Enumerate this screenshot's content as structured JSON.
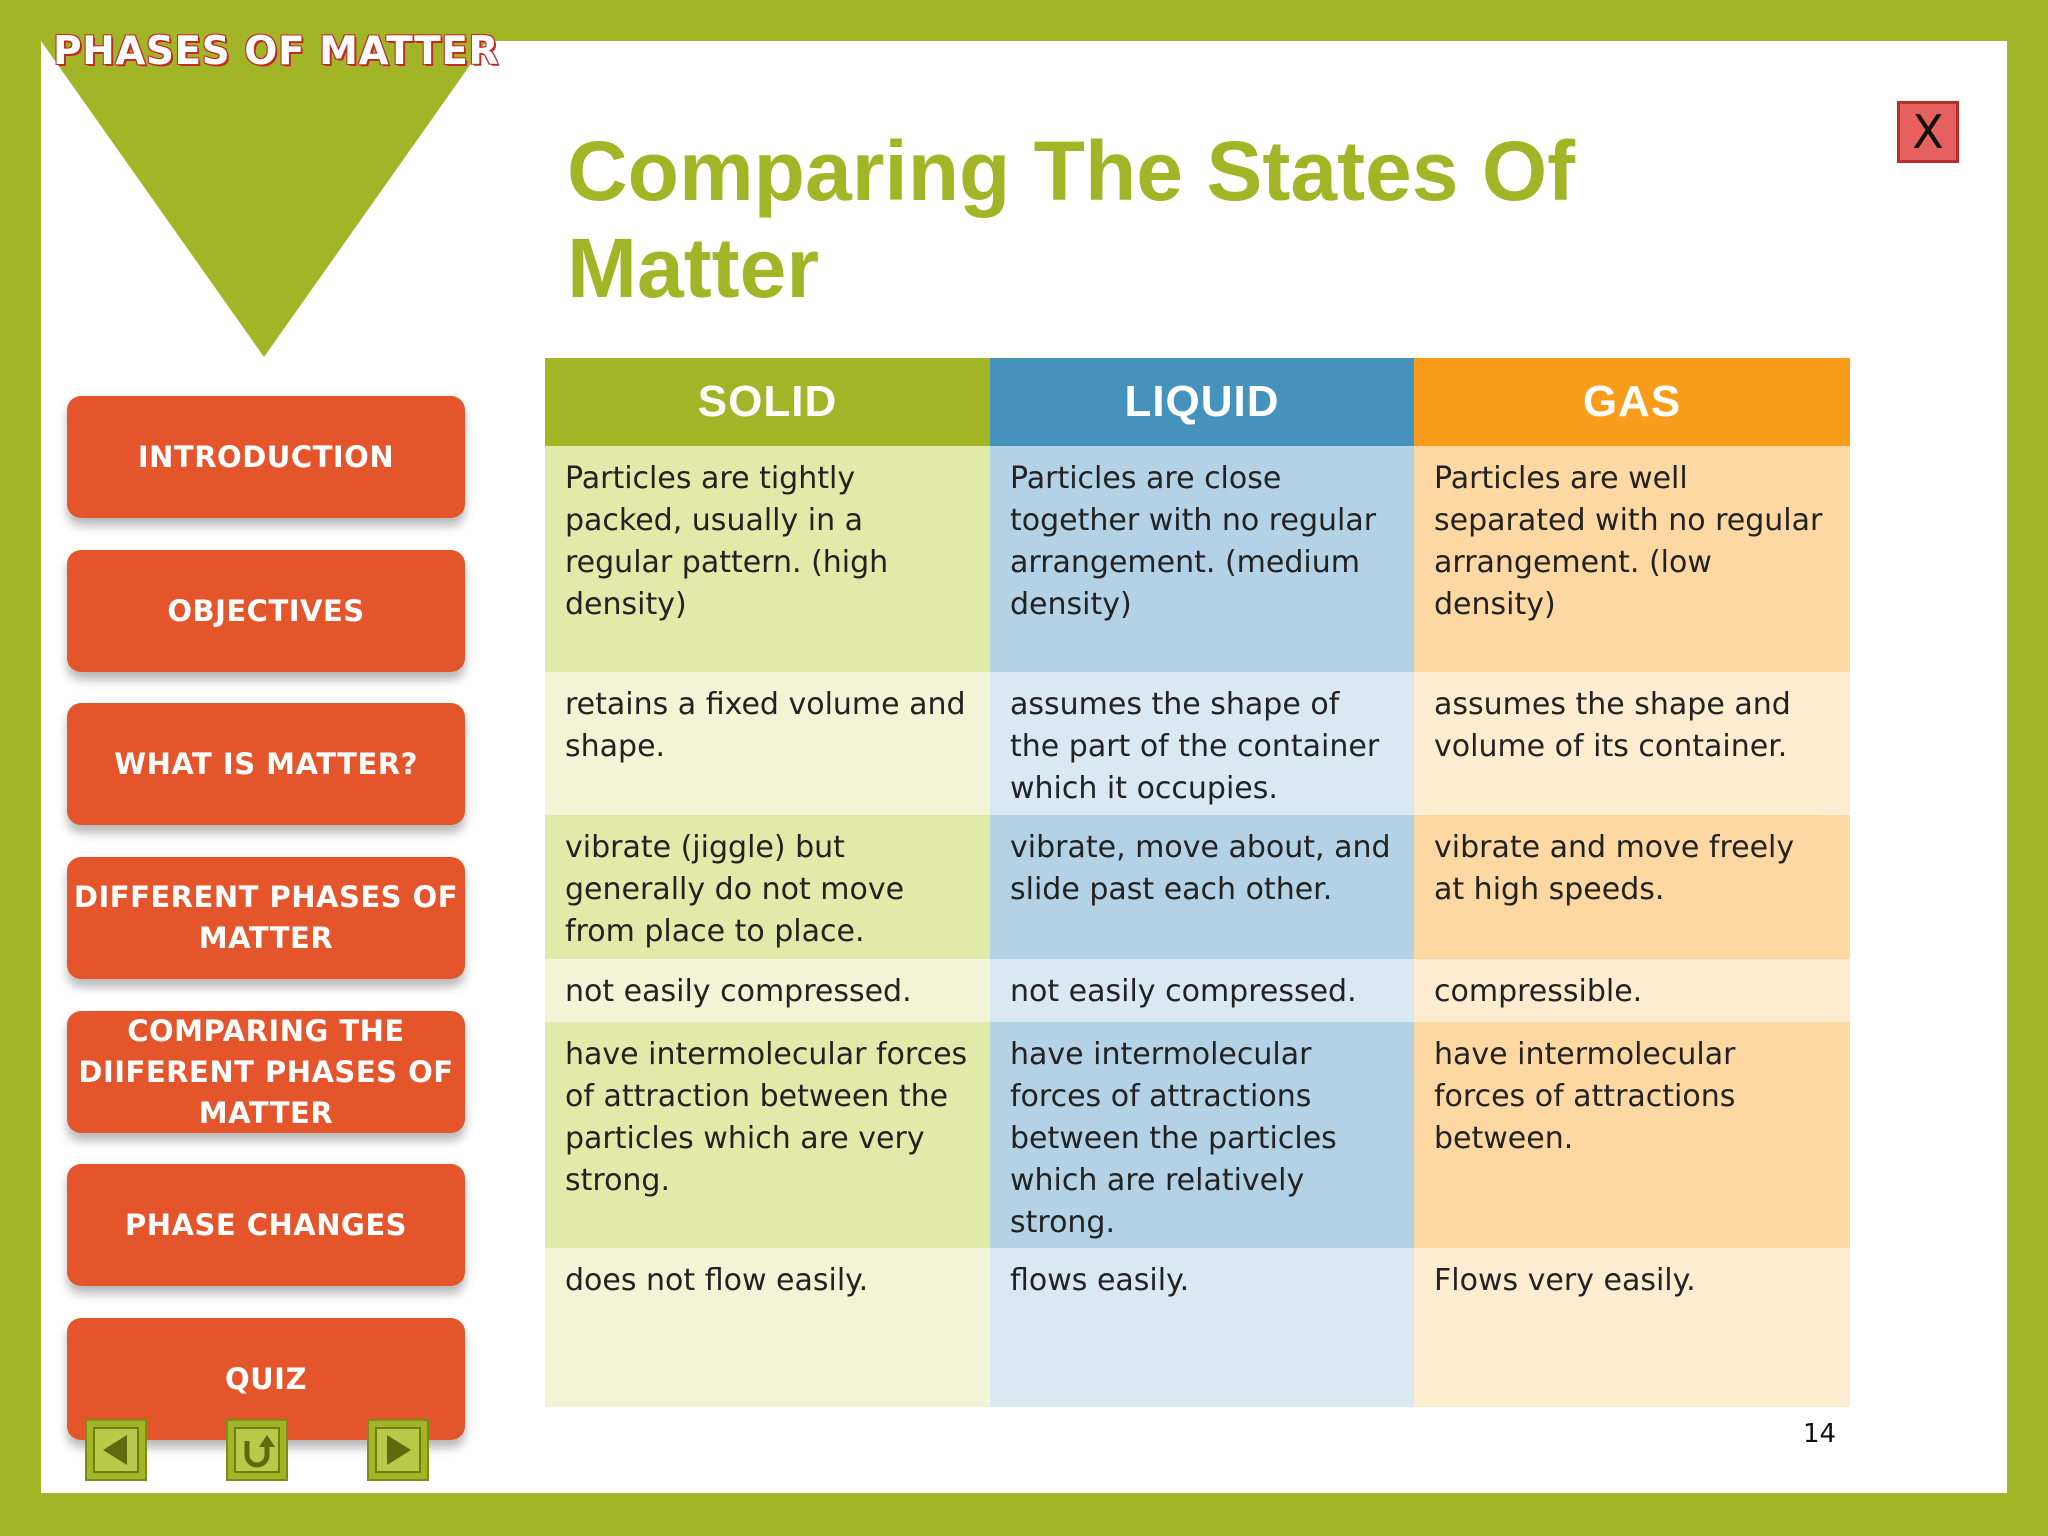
{
  "brand": {
    "title": "PHASES OF MATTER"
  },
  "close": {
    "label": "X"
  },
  "page": {
    "title": "Comparing The States Of Matter",
    "number": "14"
  },
  "nav": {
    "items": [
      {
        "label": "INTRODUCTION"
      },
      {
        "label": "OBJECTIVES"
      },
      {
        "label": "WHAT IS MATTER?"
      },
      {
        "label": "DIFFERENT PHASES OF MATTER"
      },
      {
        "label": "COMPARING THE DIIFERENT PHASES OF MATTER"
      },
      {
        "label": "PHASE CHANGES"
      },
      {
        "label": "QUIZ"
      }
    ],
    "controls": [
      "back-arrow-icon",
      "return-icon",
      "forward-arrow-icon"
    ]
  },
  "colors": {
    "accent_green": "#a2b526",
    "button_orange": "#e4552c",
    "liquid_blue": "#4592bd",
    "gas_orange": "#f99c1c"
  },
  "table": {
    "headers": [
      "SOLID",
      "LIQUID",
      "GAS"
    ],
    "rows": [
      [
        "Particles are tightly packed, usually in a regular pattern. (high density)",
        "Particles are close together with no regular arrangement. (medium density)",
        "Particles are well separated with no regular arrangement. (low density)"
      ],
      [
        "retains a fixed volume and shape.",
        "assumes the shape of the part of the container which it occupies.",
        "assumes the shape and volume of its container."
      ],
      [
        "vibrate (jiggle) but generally do not move from place to place.",
        "vibrate, move about, and slide past each other.",
        "vibrate and move freely at high speeds."
      ],
      [
        "not easily compressed.",
        "not easily compressed.",
        "compressible."
      ],
      [
        "have intermolecular forces of attraction between the particles which are very strong.",
        "have intermolecular forces of attractions between the particles which are relatively strong.",
        "have intermolecular forces of attractions between."
      ],
      [
        "does not flow easily.",
        "flows easily.",
        "Flows very easily."
      ]
    ]
  }
}
